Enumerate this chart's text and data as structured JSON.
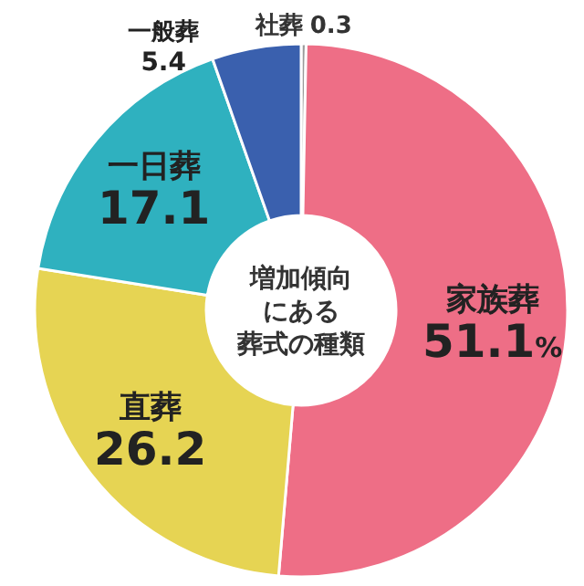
{
  "chart_data": {
    "type": "donut",
    "title": "増加傾向にある葬式の種類",
    "categories": [
      "社葬",
      "家族葬",
      "直葬",
      "一日葬",
      "一般葬"
    ],
    "values": [
      0.3,
      51.1,
      26.2,
      17.1,
      5.4
    ],
    "colors": [
      "#9a9a9a",
      "#ee6e86",
      "#e6d453",
      "#2fb1bf",
      "#3a60ae"
    ],
    "value_labels": [
      "0.3",
      "51.1%",
      "26.2",
      "17.1",
      "5.4"
    ]
  }
}
